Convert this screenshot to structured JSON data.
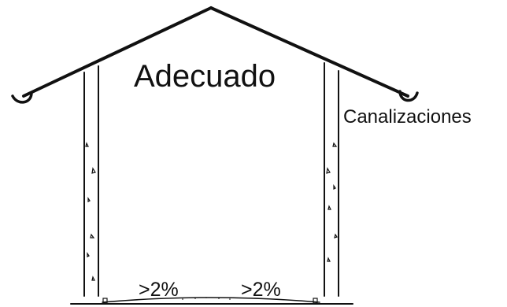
{
  "title": "Adecuado",
  "labels": {
    "gutters": "Canalizaciones",
    "slope_left": ">2%",
    "slope_right": ">2%"
  },
  "colors": {
    "line": "#111111",
    "background": "#ffffff"
  }
}
